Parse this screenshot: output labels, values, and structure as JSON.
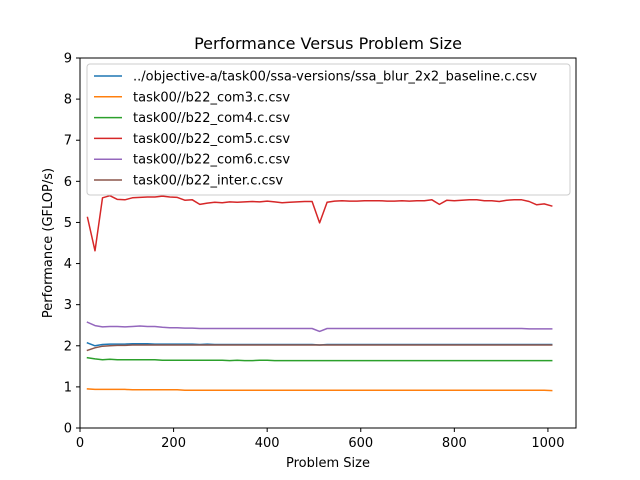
{
  "chart_data": {
    "type": "line",
    "title": "Performance Versus Problem Size",
    "xlabel": "Problem Size",
    "ylabel": "Performance (GFLOP/s)",
    "xlim": [
      0,
      1060
    ],
    "ylim": [
      0,
      9
    ],
    "x_ticks": [
      "0",
      "200",
      "400",
      "600",
      "800",
      "1000"
    ],
    "y_ticks": [
      "0",
      "1",
      "2",
      "3",
      "4",
      "5",
      "6",
      "7",
      "8",
      "9"
    ],
    "grid": false,
    "legend_position": "upper-left",
    "series": [
      {
        "name": "../objective-a/task00/ssa-versions/ssa_blur_2x2_baseline.c.csv",
        "color": "#1f77b4",
        "x": [
          16,
          32,
          48,
          64,
          80,
          96,
          112,
          128,
          144,
          160,
          176,
          192,
          208,
          224,
          240,
          256,
          272,
          288,
          304,
          320,
          336,
          352,
          368,
          384,
          400,
          416,
          432,
          448,
          464,
          480,
          496,
          512,
          528,
          544,
          560,
          576,
          592,
          608,
          624,
          640,
          656,
          672,
          688,
          704,
          720,
          736,
          752,
          768,
          784,
          800,
          816,
          832,
          848,
          864,
          880,
          896,
          912,
          928,
          944,
          960,
          976,
          992,
          1008
        ],
        "y": [
          2.07,
          2.0,
          2.03,
          2.04,
          2.04,
          2.04,
          2.05,
          2.05,
          2.05,
          2.04,
          2.04,
          2.04,
          2.04,
          2.04,
          2.04,
          2.03,
          2.04,
          2.03,
          2.03,
          2.03,
          2.03,
          2.03,
          2.03,
          2.03,
          2.03,
          2.03,
          2.03,
          2.03,
          2.03,
          2.03,
          2.03,
          2.02,
          2.03,
          2.03,
          2.03,
          2.03,
          2.03,
          2.03,
          2.03,
          2.03,
          2.03,
          2.03,
          2.03,
          2.03,
          2.03,
          2.03,
          2.03,
          2.03,
          2.03,
          2.03,
          2.03,
          2.03,
          2.03,
          2.03,
          2.03,
          2.03,
          2.03,
          2.03,
          2.03,
          2.03,
          2.03,
          2.03,
          2.03
        ]
      },
      {
        "name": "task00//b22_com3.c.csv",
        "color": "#ff7f0e",
        "x": [
          16,
          32,
          48,
          64,
          80,
          96,
          112,
          128,
          144,
          160,
          176,
          192,
          208,
          224,
          240,
          256,
          272,
          288,
          304,
          320,
          336,
          352,
          368,
          384,
          400,
          416,
          432,
          448,
          464,
          480,
          496,
          512,
          528,
          544,
          560,
          576,
          592,
          608,
          624,
          640,
          656,
          672,
          688,
          704,
          720,
          736,
          752,
          768,
          784,
          800,
          816,
          832,
          848,
          864,
          880,
          896,
          912,
          928,
          944,
          960,
          976,
          992,
          1008
        ],
        "y": [
          0.95,
          0.94,
          0.94,
          0.94,
          0.94,
          0.94,
          0.93,
          0.93,
          0.93,
          0.93,
          0.93,
          0.93,
          0.93,
          0.92,
          0.92,
          0.92,
          0.92,
          0.92,
          0.92,
          0.92,
          0.92,
          0.92,
          0.92,
          0.92,
          0.92,
          0.92,
          0.92,
          0.92,
          0.92,
          0.92,
          0.92,
          0.92,
          0.92,
          0.92,
          0.92,
          0.92,
          0.92,
          0.92,
          0.92,
          0.92,
          0.92,
          0.92,
          0.92,
          0.92,
          0.92,
          0.92,
          0.92,
          0.92,
          0.92,
          0.92,
          0.92,
          0.92,
          0.92,
          0.92,
          0.92,
          0.92,
          0.92,
          0.92,
          0.92,
          0.92,
          0.92,
          0.92,
          0.91
        ]
      },
      {
        "name": "task00//b22_com4.c.csv",
        "color": "#2ca02c",
        "x": [
          16,
          32,
          48,
          64,
          80,
          96,
          112,
          128,
          144,
          160,
          176,
          192,
          208,
          224,
          240,
          256,
          272,
          288,
          304,
          320,
          336,
          352,
          368,
          384,
          400,
          416,
          432,
          448,
          464,
          480,
          496,
          512,
          528,
          544,
          560,
          576,
          592,
          608,
          624,
          640,
          656,
          672,
          688,
          704,
          720,
          736,
          752,
          768,
          784,
          800,
          816,
          832,
          848,
          864,
          880,
          896,
          912,
          928,
          944,
          960,
          976,
          992,
          1008
        ],
        "y": [
          1.71,
          1.68,
          1.66,
          1.67,
          1.66,
          1.66,
          1.66,
          1.66,
          1.66,
          1.66,
          1.65,
          1.65,
          1.65,
          1.65,
          1.65,
          1.65,
          1.65,
          1.65,
          1.65,
          1.64,
          1.65,
          1.64,
          1.64,
          1.65,
          1.65,
          1.64,
          1.64,
          1.64,
          1.64,
          1.64,
          1.64,
          1.64,
          1.64,
          1.64,
          1.64,
          1.64,
          1.64,
          1.64,
          1.64,
          1.64,
          1.64,
          1.64,
          1.64,
          1.64,
          1.64,
          1.64,
          1.64,
          1.64,
          1.64,
          1.64,
          1.64,
          1.64,
          1.64,
          1.64,
          1.64,
          1.64,
          1.64,
          1.64,
          1.64,
          1.64,
          1.64,
          1.64,
          1.64
        ]
      },
      {
        "name": "task00//b22_com5.c.csv",
        "color": "#d62728",
        "x": [
          16,
          32,
          48,
          64,
          80,
          96,
          112,
          128,
          144,
          160,
          176,
          192,
          208,
          224,
          240,
          256,
          272,
          288,
          304,
          320,
          336,
          352,
          368,
          384,
          400,
          416,
          432,
          448,
          464,
          480,
          496,
          512,
          528,
          544,
          560,
          576,
          592,
          608,
          624,
          640,
          656,
          672,
          688,
          704,
          720,
          736,
          752,
          768,
          784,
          800,
          816,
          832,
          848,
          864,
          880,
          896,
          912,
          928,
          944,
          960,
          976,
          992,
          1008
        ],
        "y": [
          5.12,
          4.31,
          5.6,
          5.65,
          5.56,
          5.55,
          5.6,
          5.61,
          5.62,
          5.62,
          5.64,
          5.62,
          5.61,
          5.54,
          5.55,
          5.44,
          5.47,
          5.49,
          5.48,
          5.5,
          5.49,
          5.5,
          5.51,
          5.5,
          5.52,
          5.5,
          5.48,
          5.49,
          5.5,
          5.51,
          5.51,
          4.99,
          5.49,
          5.52,
          5.53,
          5.52,
          5.52,
          5.53,
          5.53,
          5.53,
          5.52,
          5.52,
          5.53,
          5.52,
          5.53,
          5.53,
          5.55,
          5.44,
          5.54,
          5.53,
          5.54,
          5.55,
          5.55,
          5.53,
          5.53,
          5.51,
          5.54,
          5.55,
          5.55,
          5.51,
          5.43,
          5.45,
          5.4
        ]
      },
      {
        "name": "task00//b22_com6.c.csv",
        "color": "#9467bd",
        "x": [
          16,
          32,
          48,
          64,
          80,
          96,
          112,
          128,
          144,
          160,
          176,
          192,
          208,
          224,
          240,
          256,
          272,
          288,
          304,
          320,
          336,
          352,
          368,
          384,
          400,
          416,
          432,
          448,
          464,
          480,
          496,
          512,
          528,
          544,
          560,
          576,
          592,
          608,
          624,
          640,
          656,
          672,
          688,
          704,
          720,
          736,
          752,
          768,
          784,
          800,
          816,
          832,
          848,
          864,
          880,
          896,
          912,
          928,
          944,
          960,
          976,
          992,
          1008
        ],
        "y": [
          2.57,
          2.49,
          2.46,
          2.47,
          2.47,
          2.46,
          2.47,
          2.48,
          2.47,
          2.47,
          2.45,
          2.44,
          2.44,
          2.43,
          2.43,
          2.42,
          2.42,
          2.42,
          2.42,
          2.42,
          2.42,
          2.42,
          2.42,
          2.42,
          2.42,
          2.42,
          2.42,
          2.42,
          2.42,
          2.42,
          2.42,
          2.35,
          2.42,
          2.42,
          2.42,
          2.42,
          2.42,
          2.42,
          2.42,
          2.42,
          2.42,
          2.42,
          2.42,
          2.42,
          2.42,
          2.42,
          2.42,
          2.42,
          2.42,
          2.42,
          2.42,
          2.42,
          2.42,
          2.42,
          2.42,
          2.42,
          2.42,
          2.42,
          2.42,
          2.41,
          2.41,
          2.41,
          2.41
        ]
      },
      {
        "name": "task00//b22_inter.c.csv",
        "color": "#8c564b",
        "x": [
          16,
          32,
          48,
          64,
          80,
          96,
          112,
          128,
          144,
          160,
          176,
          192,
          208,
          224,
          240,
          256,
          272,
          288,
          304,
          320,
          336,
          352,
          368,
          384,
          400,
          416,
          432,
          448,
          464,
          480,
          496,
          512,
          528,
          544,
          560,
          576,
          592,
          608,
          624,
          640,
          656,
          672,
          688,
          704,
          720,
          736,
          752,
          768,
          784,
          800,
          816,
          832,
          848,
          864,
          880,
          896,
          912,
          928,
          944,
          960,
          976,
          992,
          1008
        ],
        "y": [
          1.89,
          1.95,
          1.99,
          2.0,
          2.01,
          2.01,
          2.02,
          2.02,
          2.02,
          2.02,
          2.02,
          2.02,
          2.02,
          2.02,
          2.02,
          2.02,
          2.02,
          2.02,
          2.02,
          2.02,
          2.02,
          2.02,
          2.02,
          2.02,
          2.02,
          2.02,
          2.02,
          2.02,
          2.02,
          2.02,
          2.02,
          2.02,
          2.02,
          2.02,
          2.02,
          2.02,
          2.02,
          2.02,
          2.02,
          2.02,
          2.02,
          2.02,
          2.02,
          2.02,
          2.02,
          2.02,
          2.02,
          2.02,
          2.02,
          2.02,
          2.02,
          2.02,
          2.02,
          2.02,
          2.02,
          2.02,
          2.02,
          2.02,
          2.02,
          2.02,
          2.02,
          2.02,
          2.02
        ]
      }
    ]
  }
}
